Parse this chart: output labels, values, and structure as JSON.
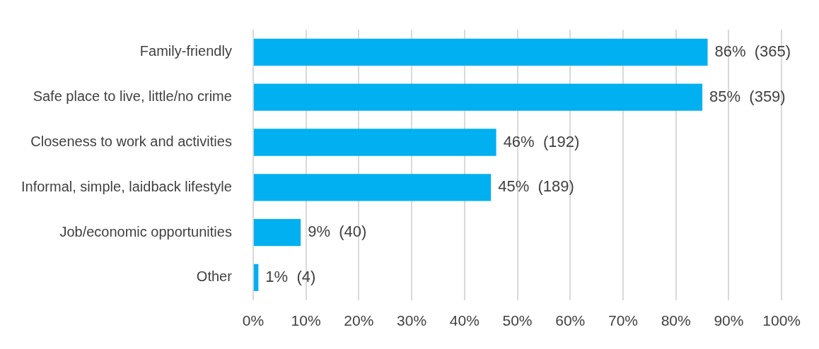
{
  "chart_data": {
    "type": "bar",
    "orientation": "horizontal",
    "categories": [
      "Family-friendly",
      "Safe place to live, little/no crime",
      "Closeness to work and activities",
      "Informal, simple, laidback lifestyle",
      "Job/economic opportunities",
      "Other"
    ],
    "values": [
      86,
      85,
      46,
      45,
      9,
      1
    ],
    "value_labels": [
      "86%  (365)",
      "85%  (359)",
      "46%  (192)",
      "45%  (189)",
      "9%  (40)",
      "1%  (4)"
    ],
    "color": "#00b0f0",
    "xlim": [
      0,
      100
    ],
    "xticks": [
      {
        "value": 0,
        "label": "0%"
      },
      {
        "value": 10,
        "label": "10%"
      },
      {
        "value": 20,
        "label": "20%"
      },
      {
        "value": 30,
        "label": "30%"
      },
      {
        "value": 40,
        "label": "40%"
      },
      {
        "value": 50,
        "label": "50%"
      },
      {
        "value": 60,
        "label": "60%"
      },
      {
        "value": 70,
        "label": "70%"
      },
      {
        "value": 80,
        "label": "80%"
      },
      {
        "value": 90,
        "label": "90%"
      },
      {
        "value": 100,
        "label": "100%"
      }
    ],
    "grid": "x",
    "legend": false
  }
}
